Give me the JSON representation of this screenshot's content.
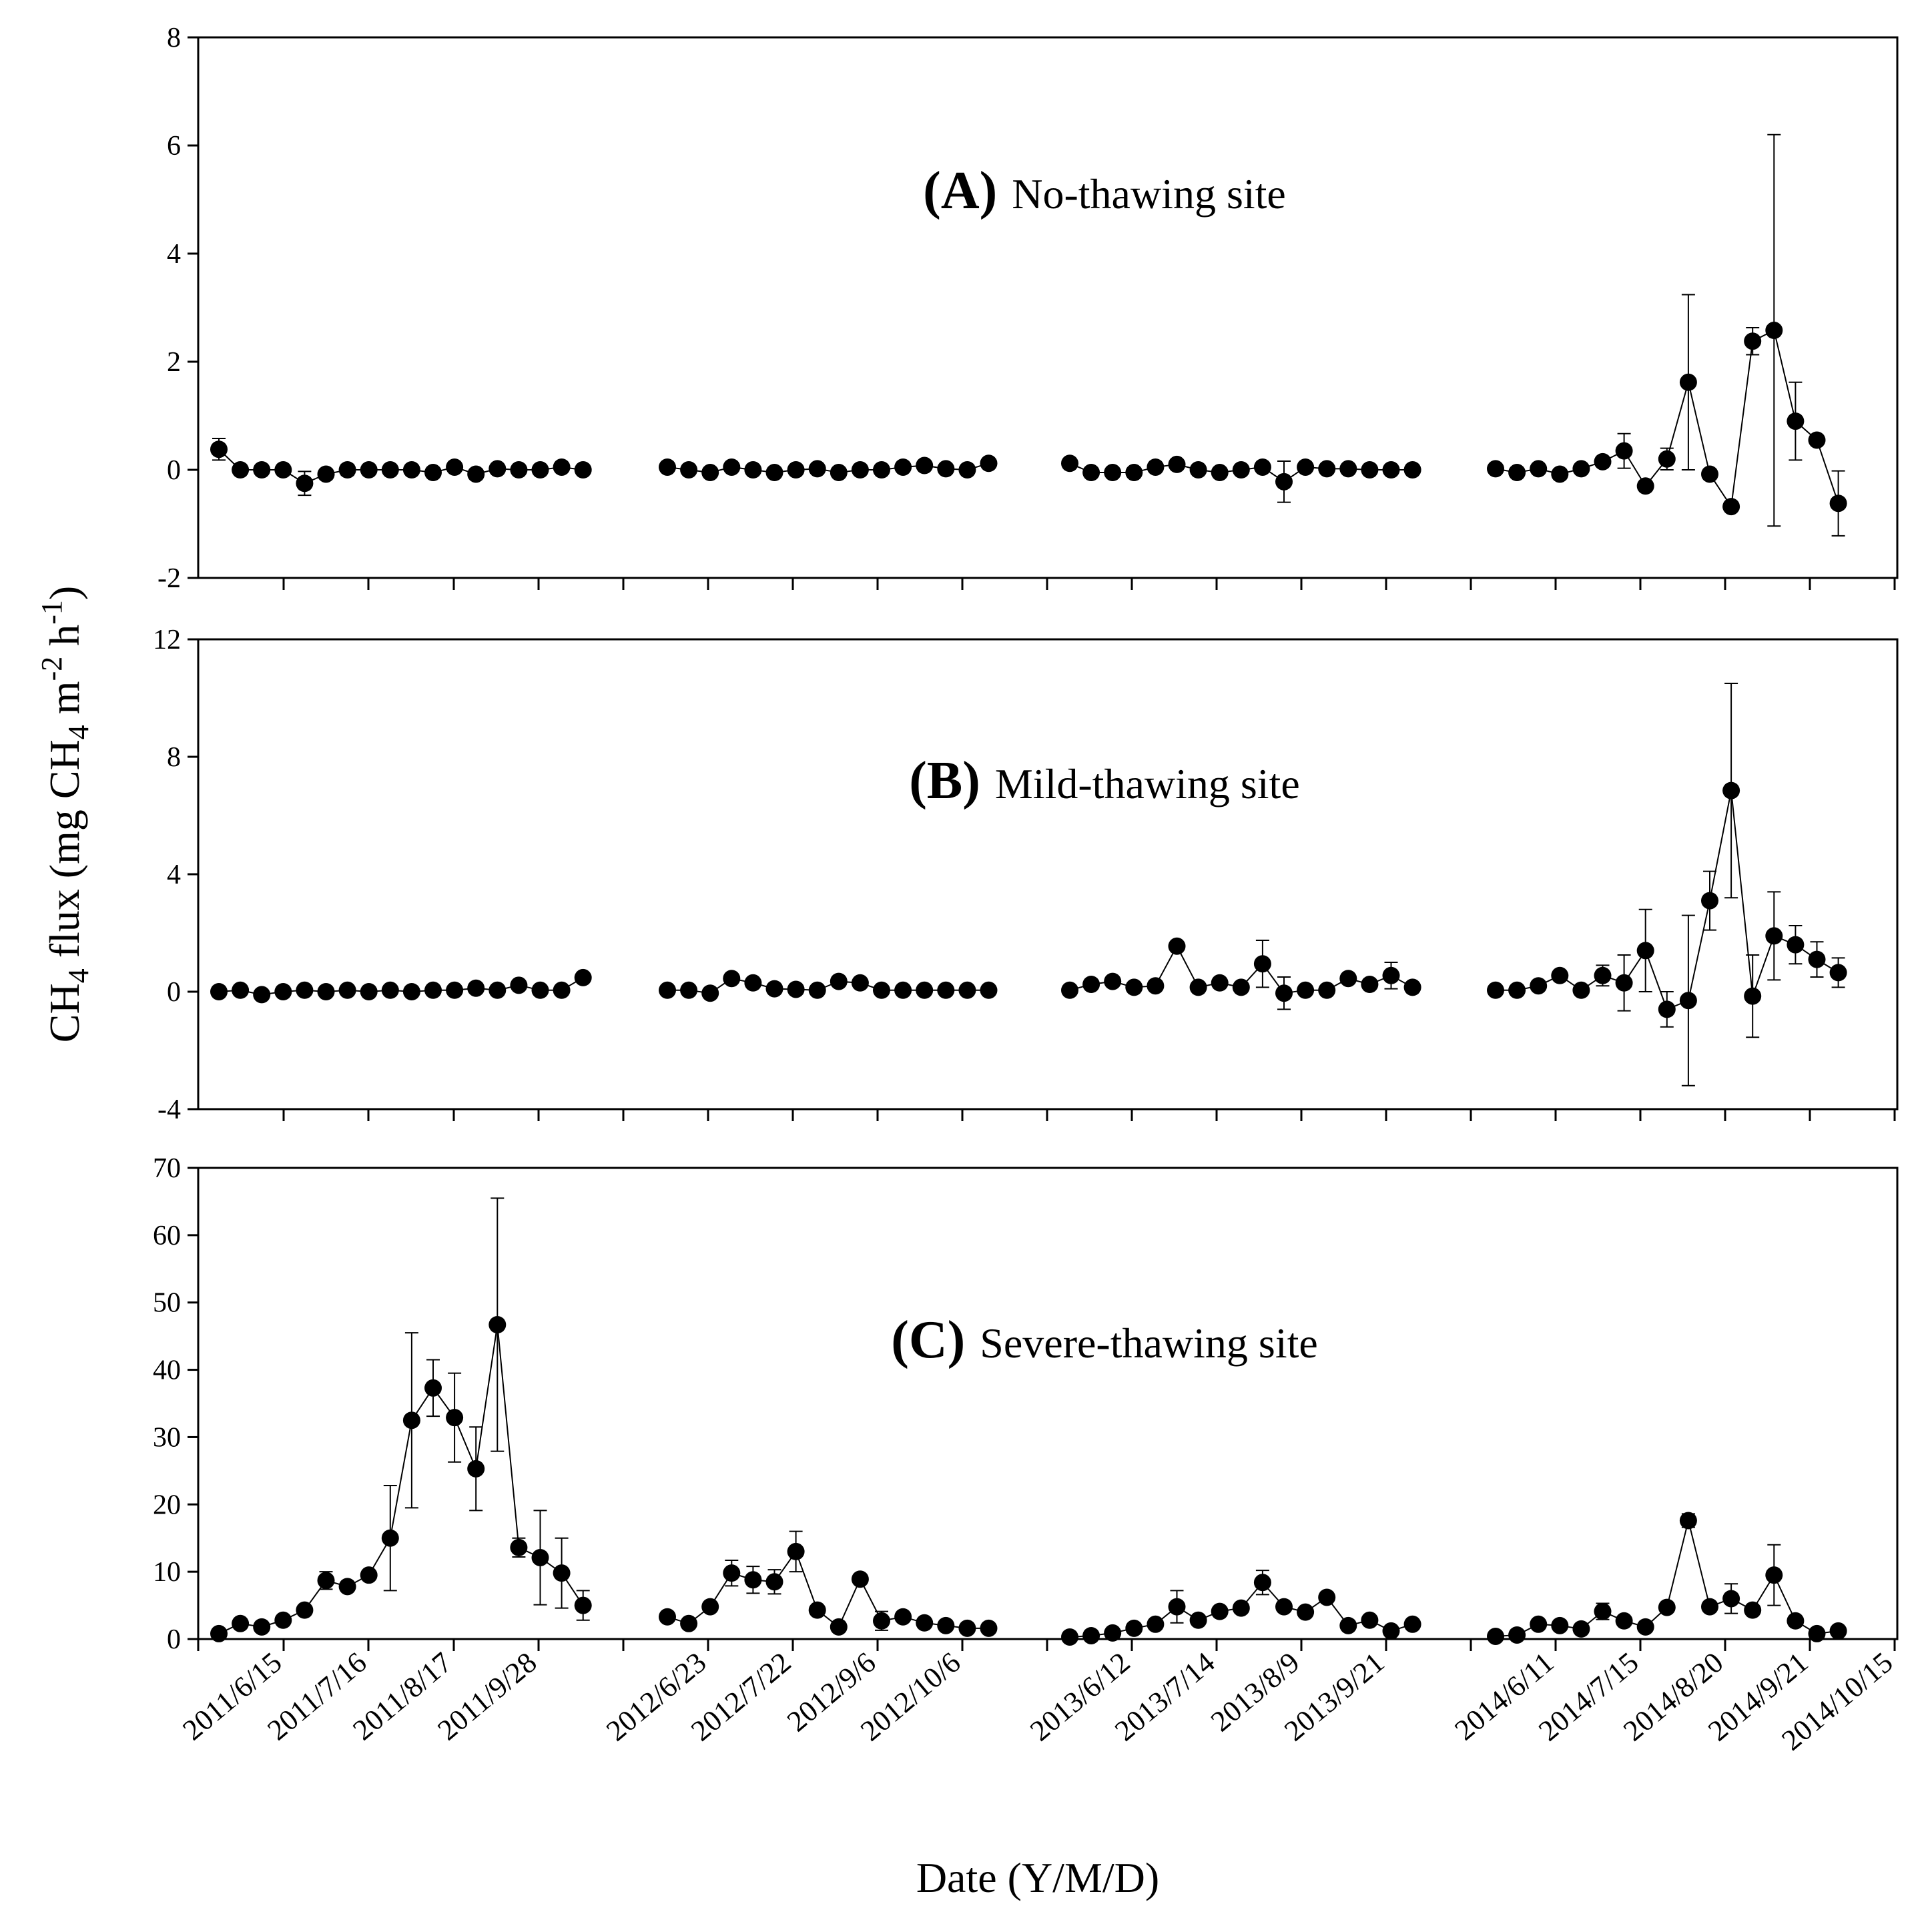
{
  "chart_data": {
    "type": "scatter",
    "xlabel": "Date (Y/M/D)",
    "ylabel": {
      "prefix": "CH",
      "sub1": "4",
      "mid": " flux (mg CH",
      "sub2": "4",
      "unit_m": " m",
      "sup1": "-2",
      "unit_h": " h",
      "sup2": "-1",
      "suffix": ")"
    },
    "x_tick_labels": [
      "2011/6/15",
      "2011/7/16",
      "2011/8/17",
      "2011/9/28",
      "2012/6/23",
      "2012/7/22",
      "2012/9/6",
      "2012/10/6",
      "2013/6/12",
      "2013/7/14",
      "2013/8/9",
      "2013/9/21",
      "2014/6/11",
      "2014/7/15",
      "2014/8/20",
      "2014/9/21",
      "2014/10/15"
    ],
    "panels": [
      {
        "letter": "(A)",
        "title": "No-thawing site",
        "ylim": [
          -2,
          8
        ],
        "yticks": [
          -2,
          0,
          2,
          4,
          6,
          8
        ],
        "series": [
          {
            "values": [
              0.38,
              0.0,
              0.0,
              0.0,
              -0.25,
              -0.08,
              0.0,
              0.0,
              0.0,
              0.0,
              -0.05,
              0.05,
              -0.08,
              0.02,
              0.0,
              0.0,
              0.05,
              0.0
            ],
            "errors": [
              0.2,
              0,
              0,
              0,
              0.22,
              0,
              0.1,
              0,
              0,
              0,
              0,
              0,
              0,
              0,
              0,
              0,
              0,
              0
            ]
          },
          {
            "values": [
              0.05,
              0.0,
              -0.05,
              0.05,
              0.0,
              -0.05,
              0.0,
              0.02,
              -0.05,
              0.0,
              0.0,
              0.05,
              0.08,
              0.02,
              0.0,
              0.12
            ],
            "errors": [
              0,
              0,
              0,
              0,
              0,
              0,
              0,
              0,
              0,
              0,
              0,
              0,
              0,
              0,
              0,
              0
            ]
          },
          {
            "values": [
              0.12,
              -0.05,
              -0.05,
              -0.05,
              0.05,
              0.1,
              0.0,
              -0.05,
              0.0,
              0.05,
              -0.22,
              0.05,
              0.02,
              0.02,
              0.0,
              0.0,
              0.0
            ],
            "errors": [
              0,
              0,
              0,
              0,
              0,
              0,
              0,
              0,
              0,
              0,
              0.38,
              0,
              0,
              0,
              0,
              0,
              0
            ]
          },
          {
            "values": [
              0.02,
              -0.05,
              0.02,
              -0.08,
              0.02,
              0.15,
              0.35,
              -0.3,
              0.2,
              1.62,
              -0.08,
              -0.68,
              2.38,
              2.58,
              0.9,
              0.55,
              -0.62
            ],
            "errors": [
              0,
              0,
              0,
              0,
              0,
              0,
              0.32,
              0,
              0.2,
              1.62,
              0,
              0,
              0.25,
              3.62,
              0.72,
              0,
              0.6
            ]
          }
        ]
      },
      {
        "letter": "(B)",
        "title": "Mild-thawing site",
        "ylim": [
          -4,
          12
        ],
        "yticks": [
          -4,
          0,
          4,
          8,
          12
        ],
        "series": [
          {
            "values": [
              0.0,
              0.05,
              -0.1,
              0.0,
              0.05,
              0.0,
              0.05,
              0.0,
              0.05,
              0.0,
              0.05,
              0.05,
              0.12,
              0.05,
              0.22,
              0.05,
              0.05,
              0.48
            ],
            "errors": [
              0,
              0,
              0,
              0,
              0,
              0,
              0,
              0,
              0,
              0,
              0,
              0,
              0,
              0,
              0,
              0,
              0,
              0
            ]
          },
          {
            "values": [
              0.05,
              0.05,
              -0.05,
              0.45,
              0.3,
              0.1,
              0.08,
              0.05,
              0.35,
              0.3,
              0.05,
              0.05,
              0.05,
              0.05,
              0.05,
              0.05
            ],
            "errors": [
              0,
              0,
              0,
              0,
              0,
              0,
              0,
              0,
              0,
              0,
              0,
              0,
              0,
              0,
              0,
              0
            ]
          },
          {
            "values": [
              0.05,
              0.25,
              0.35,
              0.15,
              0.2,
              1.55,
              0.15,
              0.3,
              0.15,
              0.95,
              -0.05,
              0.05,
              0.05,
              0.45,
              0.25,
              0.55,
              0.15
            ],
            "errors": [
              0,
              0,
              0,
              0,
              0,
              0,
              0,
              0,
              0,
              0.8,
              0.55,
              0,
              0,
              0,
              0,
              0.45,
              0
            ]
          },
          {
            "values": [
              0.05,
              0.05,
              0.2,
              0.55,
              0.05,
              0.55,
              0.3,
              1.4,
              -0.6,
              -0.3,
              3.1,
              6.85,
              -0.15,
              1.9,
              1.6,
              1.1,
              0.65
            ],
            "errors": [
              0,
              0,
              0,
              0,
              0,
              0.35,
              0.95,
              1.4,
              0.6,
              2.9,
              1.0,
              3.65,
              1.4,
              1.5,
              0.65,
              0.6,
              0.5
            ]
          }
        ]
      },
      {
        "letter": "(C)",
        "title": "Severe-thawing site",
        "ylim": [
          0,
          70
        ],
        "yticks": [
          0,
          10,
          20,
          30,
          40,
          50,
          60,
          70
        ],
        "series": [
          {
            "values": [
              0.8,
              2.3,
              1.8,
              2.8,
              4.3,
              8.7,
              7.8,
              9.5,
              15.0,
              32.5,
              37.3,
              32.9,
              25.3,
              46.7,
              13.6,
              12.1,
              9.8,
              5.0
            ],
            "errors": [
              0,
              0,
              0,
              0,
              0,
              1.3,
              0,
              0,
              7.8,
              13.0,
              4.2,
              6.6,
              6.2,
              18.8,
              1.4,
              7.0,
              5.2,
              2.2
            ]
          },
          {
            "values": [
              3.3,
              2.3,
              4.8,
              9.8,
              8.8,
              8.5,
              13.0,
              4.3,
              1.8,
              8.9,
              2.7,
              3.3,
              2.4,
              2.0,
              1.6,
              1.6
            ],
            "errors": [
              0,
              0,
              0,
              1.9,
              2.0,
              1.8,
              3.0,
              0,
              0,
              0,
              1.4,
              0,
              0,
              0,
              0,
              0
            ]
          },
          {
            "values": [
              0.3,
              0.5,
              0.9,
              1.6,
              2.2,
              4.8,
              2.8,
              4.1,
              4.6,
              8.4,
              4.8,
              4.0,
              6.2,
              2.0,
              2.8,
              1.2,
              2.2
            ],
            "errors": [
              0,
              0,
              0,
              0,
              0,
              2.4,
              0,
              0,
              0,
              1.8,
              0,
              0,
              0,
              0,
              0,
              0,
              0
            ]
          },
          {
            "values": [
              0.4,
              0.6,
              2.2,
              2.0,
              1.5,
              4.1,
              2.7,
              1.8,
              4.7,
              17.6,
              4.8,
              6.0,
              4.3,
              9.5,
              2.7,
              0.8,
              1.2
            ],
            "errors": [
              0,
              0,
              0,
              0,
              0,
              1.2,
              0,
              0,
              0,
              1.0,
              0,
              2.2,
              0,
              4.5,
              0,
              0,
              0
            ]
          }
        ]
      }
    ]
  }
}
